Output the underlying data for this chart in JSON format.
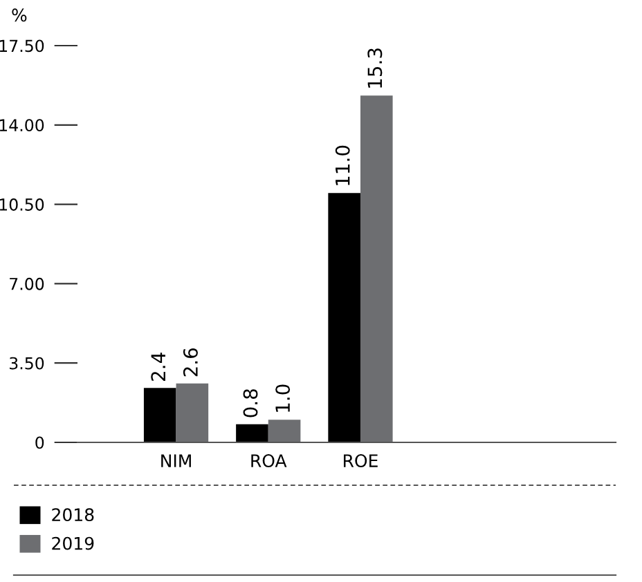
{
  "chart_data": {
    "type": "bar",
    "ylabel": "%",
    "categories": [
      "NIM",
      "ROA",
      "ROE"
    ],
    "series": [
      {
        "name": "2018",
        "color": "#000000",
        "values": [
          2.4,
          0.8,
          11.0
        ],
        "value_labels": [
          "2.4",
          "0.8",
          "11.0"
        ]
      },
      {
        "name": "2019",
        "color": "#6d6e71",
        "values": [
          2.6,
          1.0,
          15.3
        ],
        "value_labels": [
          "2.6",
          "1.0",
          "15.3"
        ]
      }
    ],
    "ylim": [
      0,
      17.5
    ],
    "yticks": [
      {
        "value": 0,
        "label": "0"
      },
      {
        "value": 3.5,
        "label": "3.50"
      },
      {
        "value": 7,
        "label": "7.00"
      },
      {
        "value": 10.5,
        "label": "10.50"
      },
      {
        "value": 14,
        "label": "14.00"
      },
      {
        "value": 17.5,
        "label": "17.50"
      }
    ],
    "grid": false,
    "legend": "bottom"
  }
}
